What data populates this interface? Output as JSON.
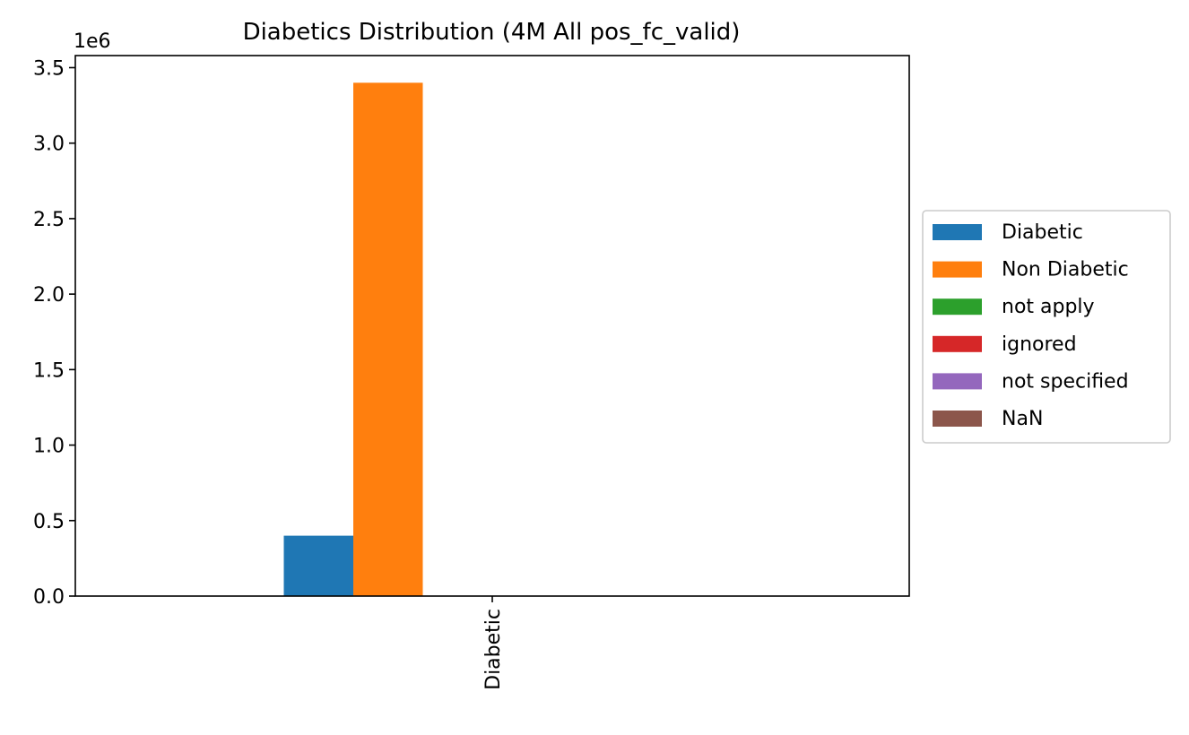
{
  "chart_data": {
    "type": "bar",
    "title": "Diabetics Distribution (4M All pos_fc_valid)",
    "xlabel": "",
    "ylabel": "",
    "categories": [
      "Diabetic"
    ],
    "ylim": [
      0,
      3580000
    ],
    "y_ticks": [
      0,
      500000,
      1000000,
      1500000,
      2000000,
      2500000,
      3000000,
      3500000
    ],
    "y_tick_labels": [
      "0.0",
      "0.5",
      "1.0",
      "1.5",
      "2.0",
      "2.5",
      "3.0",
      "3.5"
    ],
    "y_offset_text": "1e6",
    "grid": false,
    "legend_position": "center-right, outside plot",
    "series": [
      {
        "name": "Diabetic",
        "color": "#1f77b4",
        "values": [
          400000
        ]
      },
      {
        "name": "Non Diabetic",
        "color": "#ff7f0e",
        "values": [
          3400000
        ]
      },
      {
        "name": "not apply",
        "color": "#2ca02c",
        "values": [
          0
        ]
      },
      {
        "name": "ignored",
        "color": "#d62728",
        "values": [
          0
        ]
      },
      {
        "name": "not specified",
        "color": "#9467bd",
        "values": [
          0
        ]
      },
      {
        "name": "NaN",
        "color": "#8c564b",
        "values": [
          0
        ]
      }
    ]
  }
}
